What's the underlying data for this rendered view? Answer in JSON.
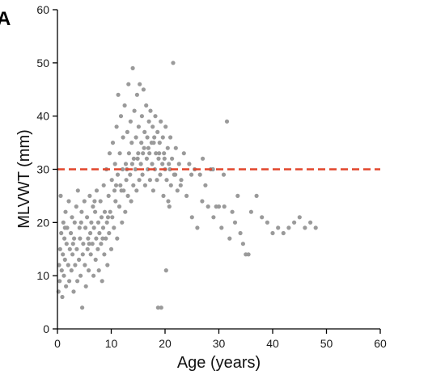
{
  "panel_label": "A",
  "chart_data": {
    "type": "scatter",
    "title": "",
    "xlabel": "Age (years)",
    "ylabel": "MLVWT (mm)",
    "xlim": [
      0,
      60
    ],
    "ylim": [
      0,
      60
    ],
    "xticks": [
      0,
      10,
      20,
      30,
      40,
      50,
      60
    ],
    "yticks": [
      0,
      10,
      20,
      30,
      40,
      50,
      60
    ],
    "xtick_labels": [
      "0",
      "10",
      "20",
      "30",
      "40",
      "50",
      "60"
    ],
    "ytick_labels": [
      "0",
      "10",
      "20",
      "30",
      "40",
      "50",
      "60"
    ],
    "grid": false,
    "legend": "none",
    "reference_line": {
      "y": 30,
      "style": "dashed",
      "color": "#e2452b"
    },
    "point_color": "#9a9a9a",
    "series": [
      {
        "points": [
          [
            0.2,
            7
          ],
          [
            0.3,
            12
          ],
          [
            0.4,
            9
          ],
          [
            0.5,
            15
          ],
          [
            0.6,
            25
          ],
          [
            0.7,
            18
          ],
          [
            0.8,
            11
          ],
          [
            0.9,
            6
          ],
          [
            1.0,
            14
          ],
          [
            1.1,
            20
          ],
          [
            1.2,
            10
          ],
          [
            1.3,
            17
          ],
          [
            1.4,
            13
          ],
          [
            1.5,
            22
          ],
          [
            1.6,
            8
          ],
          [
            1.7,
            16
          ],
          [
            1.8,
            19
          ],
          [
            2.0,
            12
          ],
          [
            2.1,
            24
          ],
          [
            2.2,
            9
          ],
          [
            2.3,
            15
          ],
          [
            2.5,
            18
          ],
          [
            2.6,
            11
          ],
          [
            2.7,
            21
          ],
          [
            2.8,
            14
          ],
          [
            3.0,
            7
          ],
          [
            3.1,
            17
          ],
          [
            3.2,
            20
          ],
          [
            3.3,
            12
          ],
          [
            3.5,
            23
          ],
          [
            3.6,
            15
          ],
          [
            3.7,
            9
          ],
          [
            3.8,
            26
          ],
          [
            4.0,
            13
          ],
          [
            4.1,
            19
          ],
          [
            4.2,
            17
          ],
          [
            4.3,
            10
          ],
          [
            4.5,
            22
          ],
          [
            4.6,
            4
          ],
          [
            4.7,
            14
          ],
          [
            4.8,
            16
          ],
          [
            5.0,
            24
          ],
          [
            5.1,
            12
          ],
          [
            5.2,
            19
          ],
          [
            5.3,
            8
          ],
          [
            5.5,
            21
          ],
          [
            5.6,
            15
          ],
          [
            5.7,
            17
          ],
          [
            5.8,
            11
          ],
          [
            6.0,
            25
          ],
          [
            6.1,
            18
          ],
          [
            6.2,
            14
          ],
          [
            6.3,
            20
          ],
          [
            6.5,
            16
          ],
          [
            6.6,
            23
          ],
          [
            6.7,
            10
          ],
          [
            6.8,
            19
          ],
          [
            7.0,
            22
          ],
          [
            7.1,
            13
          ],
          [
            7.2,
            17
          ],
          [
            7.3,
            26
          ],
          [
            7.5,
            15
          ],
          [
            7.6,
            20
          ],
          [
            7.7,
            11
          ],
          [
            7.8,
            18
          ],
          [
            8.0,
            24
          ],
          [
            8.1,
            16
          ],
          [
            8.2,
            21
          ],
          [
            8.3,
            9
          ],
          [
            8.5,
            19
          ],
          [
            8.6,
            27
          ],
          [
            8.7,
            14
          ],
          [
            8.8,
            22
          ],
          [
            9.0,
            17
          ],
          [
            9.1,
            30
          ],
          [
            9.2,
            20
          ],
          [
            9.3,
            12
          ],
          [
            9.5,
            25
          ],
          [
            9.6,
            18
          ],
          [
            9.7,
            33
          ],
          [
            9.8,
            22
          ],
          [
            10.0,
            15
          ],
          [
            10.1,
            28
          ],
          [
            10.2,
            21
          ],
          [
            10.3,
            35
          ],
          [
            10.5,
            19
          ],
          [
            10.6,
            26
          ],
          [
            10.7,
            31
          ],
          [
            10.8,
            24
          ],
          [
            11.0,
            38
          ],
          [
            11.1,
            17
          ],
          [
            11.2,
            29
          ],
          [
            11.3,
            44
          ],
          [
            11.5,
            23
          ],
          [
            11.6,
            33
          ],
          [
            11.7,
            27
          ],
          [
            11.8,
            40
          ],
          [
            12.0,
            20
          ],
          [
            12.1,
            30
          ],
          [
            12.2,
            36
          ],
          [
            12.3,
            26
          ],
          [
            12.5,
            42
          ],
          [
            12.6,
            22
          ],
          [
            12.7,
            31
          ],
          [
            12.8,
            28
          ],
          [
            13.0,
            37
          ],
          [
            13.1,
            25
          ],
          [
            13.2,
            46
          ],
          [
            13.3,
            33
          ],
          [
            13.5,
            29
          ],
          [
            13.6,
            39
          ],
          [
            13.7,
            24
          ],
          [
            13.8,
            35
          ],
          [
            14.0,
            49
          ],
          [
            14.1,
            27
          ],
          [
            14.2,
            32
          ],
          [
            14.3,
            41
          ],
          [
            14.5,
            30
          ],
          [
            14.6,
            36
          ],
          [
            14.7,
            26
          ],
          [
            14.8,
            44
          ],
          [
            15.0,
            33
          ],
          [
            15.1,
            38
          ],
          [
            15.2,
            28
          ],
          [
            15.3,
            46
          ],
          [
            15.5,
            31
          ],
          [
            15.6,
            35
          ],
          [
            15.7,
            40
          ],
          [
            15.8,
            29
          ],
          [
            16.0,
            45
          ],
          [
            16.1,
            34
          ],
          [
            16.2,
            37
          ],
          [
            16.3,
            27
          ],
          [
            16.5,
            42
          ],
          [
            16.6,
            32
          ],
          [
            16.7,
            36
          ],
          [
            16.8,
            30
          ],
          [
            17.0,
            39
          ],
          [
            17.1,
            33
          ],
          [
            17.2,
            28
          ],
          [
            17.3,
            41
          ],
          [
            17.5,
            35
          ],
          [
            17.6,
            31
          ],
          [
            17.7,
            38
          ],
          [
            17.8,
            26
          ],
          [
            18.0,
            36
          ],
          [
            18.1,
            30
          ],
          [
            18.2,
            40
          ],
          [
            18.3,
            33
          ],
          [
            18.5,
            28
          ],
          [
            18.6,
            37
          ],
          [
            18.7,
            4
          ],
          [
            18.8,
            32
          ],
          [
            19.0,
            35
          ],
          [
            19.1,
            29
          ],
          [
            19.2,
            39
          ],
          [
            19.3,
            4
          ],
          [
            19.5,
            31
          ],
          [
            19.6,
            36
          ],
          [
            19.7,
            25
          ],
          [
            19.8,
            33
          ],
          [
            20.0,
            30
          ],
          [
            20.1,
            38
          ],
          [
            20.2,
            11
          ],
          [
            20.3,
            28
          ],
          [
            20.5,
            34
          ],
          [
            20.6,
            24
          ],
          [
            20.7,
            31
          ],
          [
            20.8,
            23
          ],
          [
            21.0,
            36
          ],
          [
            21.1,
            27
          ],
          [
            21.3,
            32
          ],
          [
            21.5,
            50
          ],
          [
            21.7,
            29
          ],
          [
            22.0,
            34
          ],
          [
            22.3,
            26
          ],
          [
            22.6,
            31
          ],
          [
            23.0,
            28
          ],
          [
            23.5,
            33
          ],
          [
            24.0,
            25
          ],
          [
            24.5,
            31
          ],
          [
            25.0,
            21
          ],
          [
            25.5,
            30
          ],
          [
            26.0,
            19
          ],
          [
            26.5,
            29
          ],
          [
            27.0,
            32
          ],
          [
            27.5,
            27
          ],
          [
            28.0,
            23
          ],
          [
            28.5,
            30
          ],
          [
            29.0,
            21
          ],
          [
            29.5,
            23
          ],
          [
            30.0,
            23
          ],
          [
            30.5,
            19
          ],
          [
            31.0,
            23
          ],
          [
            31.5,
            39
          ],
          [
            32.0,
            17
          ],
          [
            32.5,
            22
          ],
          [
            33.0,
            20
          ],
          [
            33.5,
            25
          ],
          [
            34.0,
            18
          ],
          [
            34.5,
            16
          ],
          [
            35.0,
            14
          ],
          [
            35.5,
            14
          ],
          [
            36.0,
            22
          ],
          [
            37.0,
            25
          ],
          [
            38.0,
            21
          ],
          [
            39.0,
            20
          ],
          [
            40.0,
            18
          ],
          [
            41.0,
            19
          ],
          [
            42.0,
            18
          ],
          [
            43.0,
            19
          ],
          [
            44.0,
            20
          ],
          [
            45.0,
            21
          ],
          [
            46.0,
            19
          ],
          [
            47.0,
            20
          ],
          [
            48.0,
            19
          ],
          [
            1.4,
            19
          ],
          [
            2.9,
            16
          ],
          [
            4.4,
            20
          ],
          [
            5.9,
            16
          ],
          [
            6.9,
            24
          ],
          [
            8.4,
            17
          ],
          [
            9.4,
            21
          ],
          [
            10.9,
            27
          ],
          [
            11.9,
            26
          ],
          [
            12.9,
            30
          ],
          [
            13.9,
            31
          ],
          [
            14.9,
            32
          ],
          [
            15.9,
            33
          ],
          [
            16.9,
            34
          ],
          [
            17.9,
            35
          ],
          [
            18.9,
            33
          ],
          [
            19.9,
            32
          ],
          [
            20.9,
            30
          ],
          [
            21.9,
            29
          ],
          [
            22.9,
            27
          ],
          [
            24.9,
            29
          ],
          [
            26.9,
            24
          ],
          [
            28.9,
            30
          ],
          [
            30.9,
            29
          ]
        ]
      }
    ]
  }
}
